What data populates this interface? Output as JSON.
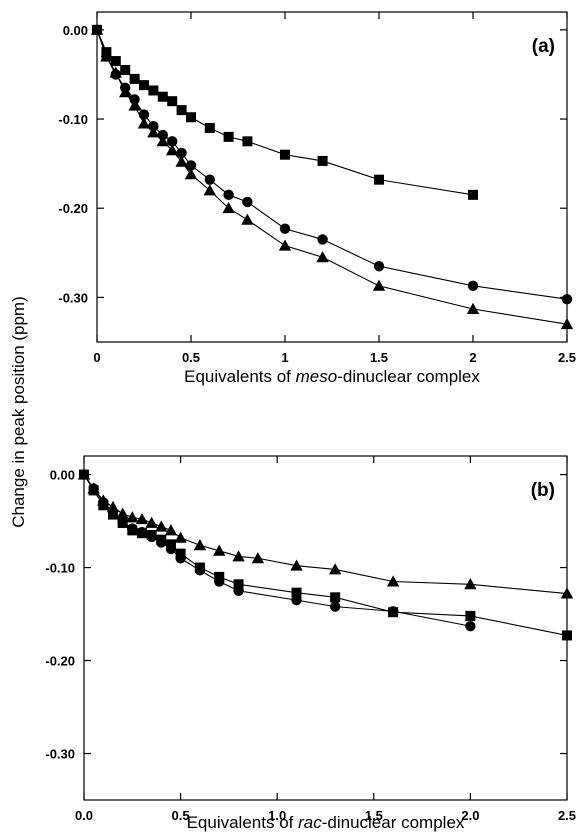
{
  "ylabel": "Change in peak position (ppm)",
  "chart_data": [
    {
      "type": "line",
      "panel_label": "(a)",
      "xlabel_parts": [
        {
          "text": "Equivalents of ",
          "italic": false
        },
        {
          "text": "meso",
          "italic": true
        },
        {
          "text": "-dinuclear complex",
          "italic": false
        }
      ],
      "xlim": [
        0,
        2.5
      ],
      "ylim": [
        -0.35,
        0.02
      ],
      "xticks": [
        0,
        0.5,
        1,
        1.5,
        2,
        2.5
      ],
      "xtick_labels": [
        "0",
        "0.5",
        "1",
        "1.5",
        "2",
        "2.5"
      ],
      "yticks": [
        0,
        -0.1,
        -0.2,
        -0.3
      ],
      "ytick_labels": [
        "0.00",
        "-0.10",
        "-0.20",
        "-0.30"
      ],
      "ytick_labels_visible": true,
      "grid": false,
      "series": [
        {
          "marker": "square",
          "x": [
            0,
            0.05,
            0.1,
            0.15,
            0.2,
            0.25,
            0.3,
            0.35,
            0.4,
            0.45,
            0.5,
            0.6,
            0.7,
            0.8,
            1.0,
            1.2,
            1.5,
            2.0
          ],
          "y": [
            0,
            -0.025,
            -0.035,
            -0.045,
            -0.055,
            -0.062,
            -0.068,
            -0.075,
            -0.08,
            -0.09,
            -0.098,
            -0.11,
            -0.12,
            -0.125,
            -0.14,
            -0.147,
            -0.168,
            -0.185
          ]
        },
        {
          "marker": "circle",
          "x": [
            0,
            0.05,
            0.1,
            0.15,
            0.2,
            0.25,
            0.3,
            0.35,
            0.4,
            0.45,
            0.5,
            0.6,
            0.7,
            0.8,
            1.0,
            1.2,
            1.5,
            2.0,
            2.5
          ],
          "y": [
            0,
            -0.03,
            -0.05,
            -0.065,
            -0.078,
            -0.095,
            -0.108,
            -0.118,
            -0.125,
            -0.138,
            -0.152,
            -0.168,
            -0.185,
            -0.193,
            -0.223,
            -0.235,
            -0.265,
            -0.287,
            -0.302
          ]
        },
        {
          "marker": "triangle",
          "x": [
            0,
            0.05,
            0.1,
            0.15,
            0.2,
            0.25,
            0.3,
            0.35,
            0.4,
            0.45,
            0.5,
            0.6,
            0.7,
            0.8,
            1.0,
            1.2,
            1.5,
            2.0,
            2.5
          ],
          "y": [
            0,
            -0.03,
            -0.048,
            -0.07,
            -0.085,
            -0.105,
            -0.115,
            -0.125,
            -0.135,
            -0.148,
            -0.162,
            -0.18,
            -0.2,
            -0.213,
            -0.242,
            -0.255,
            -0.287,
            -0.313,
            -0.33
          ]
        }
      ]
    },
    {
      "type": "line",
      "panel_label": "(b)",
      "xlabel_parts": [
        {
          "text": "Equivalents of ",
          "italic": false
        },
        {
          "text": "rac",
          "italic": true
        },
        {
          "text": "-dinuclear complex",
          "italic": false
        }
      ],
      "xlim": [
        0,
        2.5
      ],
      "ylim": [
        -0.35,
        0.02
      ],
      "xticks": [
        0,
        0.5,
        1,
        1.5,
        2,
        2.5
      ],
      "xtick_labels": [
        "0.0",
        "0.5",
        "1.0",
        "1.5",
        "2.0",
        "2.5"
      ],
      "yticks": [
        0,
        -0.1,
        -0.2,
        -0.3
      ],
      "ytick_labels": [
        "0.00",
        "-0.10",
        "-0.20",
        "-0.30"
      ],
      "ytick_labels_visible": true,
      "grid": false,
      "series": [
        {
          "marker": "triangle",
          "x": [
            0,
            0.05,
            0.1,
            0.15,
            0.2,
            0.25,
            0.3,
            0.35,
            0.4,
            0.45,
            0.5,
            0.6,
            0.7,
            0.8,
            0.9,
            1.1,
            1.3,
            1.6,
            2.0,
            2.5
          ],
          "y": [
            0,
            -0.015,
            -0.028,
            -0.035,
            -0.042,
            -0.046,
            -0.048,
            -0.052,
            -0.056,
            -0.06,
            -0.068,
            -0.076,
            -0.082,
            -0.088,
            -0.09,
            -0.098,
            -0.102,
            -0.115,
            -0.118,
            -0.128
          ]
        },
        {
          "marker": "circle",
          "x": [
            0,
            0.05,
            0.1,
            0.15,
            0.2,
            0.25,
            0.3,
            0.35,
            0.4,
            0.45,
            0.5,
            0.6,
            0.7,
            0.8,
            1.1,
            1.3,
            1.6,
            2.0
          ],
          "y": [
            0,
            -0.015,
            -0.03,
            -0.04,
            -0.05,
            -0.058,
            -0.062,
            -0.067,
            -0.073,
            -0.08,
            -0.09,
            -0.103,
            -0.115,
            -0.125,
            -0.135,
            -0.142,
            -0.147,
            -0.163
          ]
        },
        {
          "marker": "square",
          "x": [
            0,
            0.05,
            0.1,
            0.15,
            0.2,
            0.25,
            0.3,
            0.35,
            0.4,
            0.45,
            0.5,
            0.6,
            0.7,
            0.8,
            1.1,
            1.3,
            1.6,
            2.0,
            2.5
          ],
          "y": [
            0,
            -0.017,
            -0.033,
            -0.043,
            -0.052,
            -0.06,
            -0.063,
            -0.065,
            -0.07,
            -0.075,
            -0.085,
            -0.1,
            -0.11,
            -0.118,
            -0.127,
            -0.132,
            -0.148,
            -0.152,
            -0.173
          ]
        }
      ]
    }
  ]
}
